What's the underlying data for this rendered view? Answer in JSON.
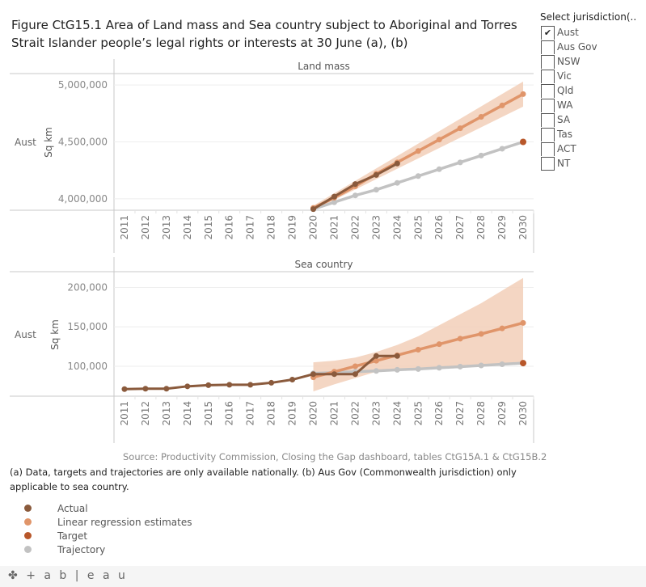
{
  "title": "Figure CtG15.1 Area of Land mass and Sea country subject to Aboriginal and Torres Strait Islander people’s legal rights or interests at 30 June (a), (b)",
  "filter": {
    "title": "Select jurisdiction(..",
    "items": [
      {
        "label": "Aust",
        "checked": true
      },
      {
        "label": "Aus Gov",
        "checked": false
      },
      {
        "label": "NSW",
        "checked": false
      },
      {
        "label": "Vic",
        "checked": false
      },
      {
        "label": "Qld",
        "checked": false
      },
      {
        "label": "WA",
        "checked": false
      },
      {
        "label": "SA",
        "checked": false
      },
      {
        "label": "Tas",
        "checked": false
      },
      {
        "label": "ACT",
        "checked": false
      },
      {
        "label": "NT",
        "checked": false
      }
    ]
  },
  "source": "Source: Productivity Commission, Closing the Gap dashboard, tables CtG15A.1 & CtG15B.2",
  "note": "(a) Data, targets and trajectories are only available nationally. (b) Aus Gov (Commonwealth jurisdiction) only applicable to sea country.",
  "legend": [
    {
      "label": "Actual",
      "color": "#8a5a3c"
    },
    {
      "label": "Linear regression estimates",
      "color": "#e0956a"
    },
    {
      "label": "Target",
      "color": "#b8572a"
    },
    {
      "label": "Trajectory",
      "color": "#c2c2c2"
    }
  ],
  "footer": {
    "logo": "+ a b | e a u"
  },
  "colors": {
    "actual": "#8a5a3c",
    "regression": "#e0956a",
    "band": "#f2cfb8",
    "target": "#b8572a",
    "trajectory": "#c2c2c2"
  },
  "chart_data": [
    {
      "type": "line",
      "title": "Land mass",
      "row_label": "Aust",
      "ylabel": "Sq km",
      "x": [
        2011,
        2012,
        2013,
        2014,
        2015,
        2016,
        2017,
        2018,
        2019,
        2020,
        2021,
        2022,
        2023,
        2024,
        2025,
        2026,
        2027,
        2028,
        2029,
        2030
      ],
      "ylim": [
        3900000,
        5100000
      ],
      "yticks": [
        4000000,
        4500000,
        5000000
      ],
      "ytick_labels": [
        "4,000,000",
        "4,500,000",
        "5,000,000"
      ],
      "series": [
        {
          "name": "Actual",
          "x": [
            2020,
            2021,
            2022,
            2023,
            2024
          ],
          "values": [
            3910000,
            4020000,
            4130000,
            4210000,
            4310000
          ]
        },
        {
          "name": "Linear regression estimates",
          "x": [
            2020,
            2021,
            2022,
            2023,
            2024,
            2025,
            2026,
            2027,
            2028,
            2029,
            2030
          ],
          "values": [
            3920000,
            4010000,
            4110000,
            4220000,
            4320000,
            4420000,
            4520000,
            4620000,
            4720000,
            4820000,
            4920000
          ]
        },
        {
          "name": "Regression band",
          "x": [
            2020,
            2030
          ],
          "upper": [
            3940000,
            5030000
          ],
          "lower": [
            3900000,
            4810000
          ]
        },
        {
          "name": "Trajectory",
          "x": [
            2020,
            2021,
            2022,
            2023,
            2024,
            2025,
            2026,
            2027,
            2028,
            2029,
            2030
          ],
          "values": [
            3910000,
            3970000,
            4030000,
            4080000,
            4140000,
            4200000,
            4260000,
            4320000,
            4380000,
            4440000,
            4500000
          ]
        },
        {
          "name": "Target",
          "x": [
            2030
          ],
          "values": [
            4500000
          ]
        }
      ]
    },
    {
      "type": "line",
      "title": "Sea country",
      "row_label": "Aust",
      "ylabel": "Sq km",
      "x": [
        2011,
        2012,
        2013,
        2014,
        2015,
        2016,
        2017,
        2018,
        2019,
        2020,
        2021,
        2022,
        2023,
        2024,
        2025,
        2026,
        2027,
        2028,
        2029,
        2030
      ],
      "ylim": [
        62000,
        220000
      ],
      "yticks": [
        100000,
        150000,
        200000
      ],
      "ytick_labels": [
        "100,000",
        "150,000",
        "200,000"
      ],
      "series": [
        {
          "name": "Actual",
          "x": [
            2011,
            2012,
            2013,
            2014,
            2015,
            2016,
            2017,
            2018,
            2019,
            2020,
            2021,
            2022,
            2023,
            2024
          ],
          "values": [
            71000,
            71500,
            71500,
            74500,
            76000,
            76500,
            76500,
            79000,
            83000,
            90000,
            90000,
            90000,
            113000,
            113000
          ]
        },
        {
          "name": "Linear regression estimates",
          "x": [
            2020,
            2021,
            2022,
            2023,
            2024,
            2025,
            2026,
            2027,
            2028,
            2029,
            2030
          ],
          "values": [
            86000,
            93000,
            100000,
            107000,
            114000,
            121000,
            128000,
            135000,
            141000,
            148000,
            155000
          ]
        },
        {
          "name": "Regression band",
          "x": [
            2020,
            2021,
            2022,
            2023,
            2024,
            2025,
            2026,
            2027,
            2028,
            2029,
            2030
          ],
          "upper": [
            105000,
            107000,
            111000,
            118000,
            127000,
            138000,
            152000,
            166000,
            180000,
            196000,
            212000
          ],
          "lower": [
            68000,
            77000,
            85000,
            93000,
            96000,
            98000,
            99000,
            100000,
            101000,
            102000,
            103000
          ]
        },
        {
          "name": "Trajectory",
          "x": [
            2020,
            2021,
            2022,
            2023,
            2024,
            2025,
            2026,
            2027,
            2028,
            2029,
            2030
          ],
          "values": [
            91000,
            92000,
            93000,
            94000,
            95500,
            96500,
            98000,
            99500,
            101000,
            102500,
            104000
          ]
        },
        {
          "name": "Target",
          "x": [
            2030
          ],
          "values": [
            104000
          ]
        }
      ]
    }
  ]
}
